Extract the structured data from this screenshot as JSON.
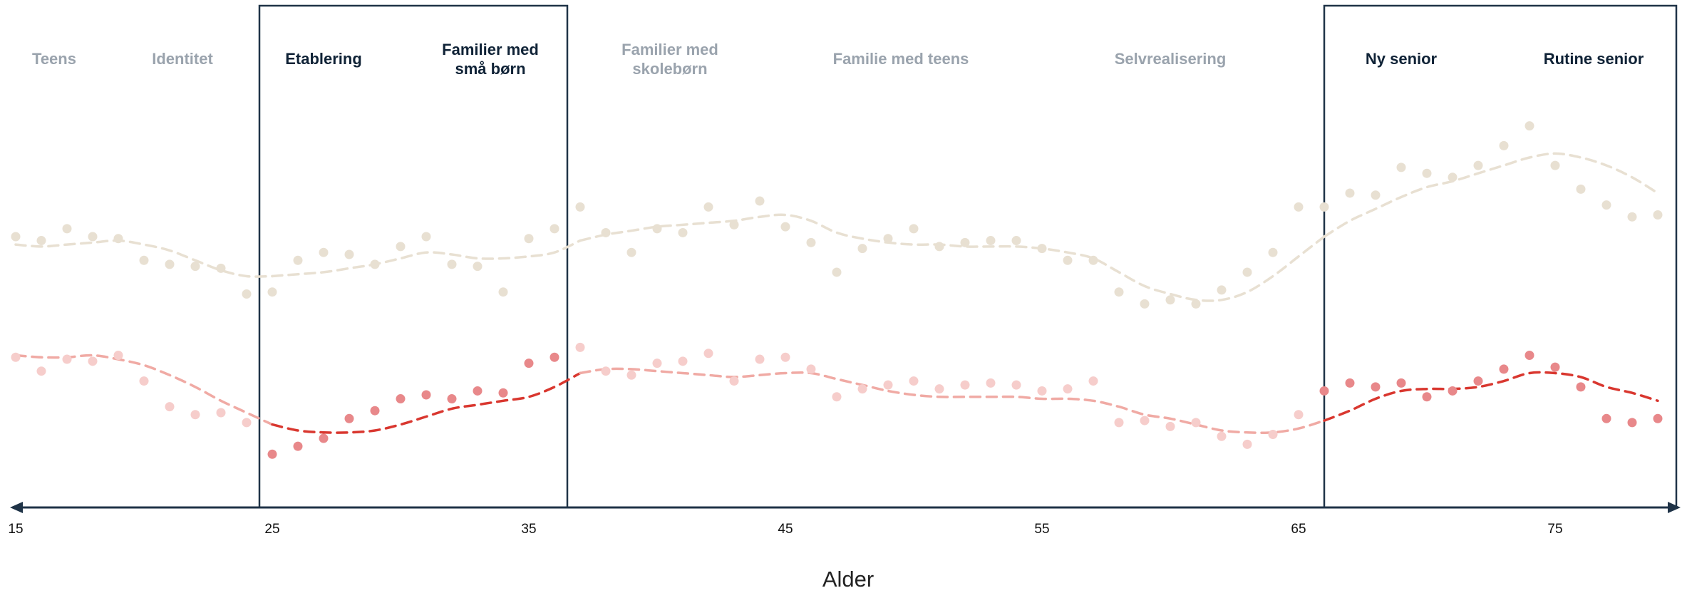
{
  "colors": {
    "axis": "#1f3347",
    "highlight_text": "#0f2236",
    "faded_text": "#9aa3ad",
    "beige": "#e8e0d2",
    "red_point": "#e8888a",
    "red_line": "#d9372f",
    "red_faded_point": "#f6cdcb",
    "red_faded_line": "#f0aaa4"
  },
  "chart_data": {
    "type": "scatter",
    "xlabel": "Alder",
    "ylabel": "",
    "xlim": [
      15,
      80
    ],
    "x_ticks": [
      15,
      25,
      35,
      45,
      55,
      65,
      75
    ],
    "ylim": [
      0,
      100
    ],
    "grid": false,
    "legend": "none",
    "highlight_ranges": [
      [
        24.5,
        36.5
      ],
      [
        66,
        80
      ]
    ],
    "phases": [
      {
        "key": "teens",
        "lines": [
          "Teens"
        ],
        "highlighted": false,
        "center": 16.5
      },
      {
        "key": "identitet",
        "lines": [
          "Identitet"
        ],
        "highlighted": false,
        "center": 21.5
      },
      {
        "key": "etablering",
        "lines": [
          "Etablering"
        ],
        "highlighted": true,
        "center": 27
      },
      {
        "key": "familier_smaa",
        "lines": [
          "Familier med",
          "små børn"
        ],
        "highlighted": true,
        "center": 33.5
      },
      {
        "key": "familier_skole",
        "lines": [
          "Familier med",
          "skolebørn"
        ],
        "highlighted": false,
        "center": 40.5
      },
      {
        "key": "familie_teens",
        "lines": [
          "Familie med teens"
        ],
        "highlighted": false,
        "center": 49.5
      },
      {
        "key": "selvrealisering",
        "lines": [
          "Selvrealisering"
        ],
        "highlighted": false,
        "center": 60
      },
      {
        "key": "ny_senior",
        "lines": [
          "Ny senior"
        ],
        "highlighted": true,
        "center": 69
      },
      {
        "key": "rutine_senior",
        "lines": [
          "Rutine senior"
        ],
        "highlighted": true,
        "center": 76.5
      }
    ],
    "series": [
      {
        "color_key": "beige",
        "x": [
          15,
          16,
          17,
          18,
          19,
          20,
          21,
          22,
          23,
          24,
          25,
          26,
          27,
          28,
          29,
          30,
          31,
          32,
          33,
          34,
          35,
          36,
          37,
          38,
          39,
          40,
          41,
          42,
          43,
          44,
          45,
          46,
          47,
          48,
          49,
          50,
          51,
          52,
          53,
          54,
          55,
          56,
          57,
          58,
          59,
          60,
          61,
          62,
          63,
          64,
          65,
          66,
          67,
          68,
          69,
          70,
          71,
          72,
          73,
          74,
          75,
          76,
          77,
          78,
          79
        ],
        "y": [
          60,
          59,
          62,
          60,
          59.5,
          54,
          53,
          52.5,
          52,
          45.5,
          46,
          54,
          56,
          55.5,
          53,
          57.5,
          60,
          53,
          52.5,
          46,
          59.5,
          62,
          67.5,
          61,
          56,
          62,
          61,
          67.5,
          63,
          69,
          62.5,
          58.5,
          51,
          57,
          59.5,
          62,
          57.5,
          58.5,
          59,
          59,
          57,
          54,
          54,
          46,
          43,
          44,
          43,
          46.5,
          51,
          56,
          67.5,
          67.5,
          71,
          70.5,
          77.5,
          76,
          75,
          78,
          83,
          88,
          78,
          72,
          68,
          65,
          65.5
        ],
        "trend": [
          58,
          57.5,
          58,
          58.5,
          59,
          58,
          56.5,
          54,
          51.5,
          50,
          50,
          50.5,
          51,
          52,
          53,
          54.5,
          56,
          55.5,
          54.5,
          54.5,
          55,
          56,
          59,
          60.5,
          61.5,
          62.5,
          63,
          63.5,
          64,
          65,
          65.5,
          64,
          61,
          59.5,
          58.5,
          58,
          58,
          57.5,
          57.5,
          57.5,
          57,
          56,
          54.5,
          51,
          47.5,
          45.5,
          44,
          44,
          46,
          50,
          55,
          60,
          64,
          67,
          70,
          72.5,
          74,
          76,
          78,
          80,
          81,
          80,
          78,
          75,
          71
        ]
      },
      {
        "color_key": "red",
        "x": [
          15,
          16,
          17,
          18,
          19,
          20,
          21,
          22,
          23,
          24,
          25,
          26,
          27,
          28,
          29,
          30,
          31,
          32,
          33,
          34,
          35,
          36,
          37,
          38,
          39,
          40,
          41,
          42,
          43,
          44,
          45,
          46,
          47,
          48,
          49,
          50,
          51,
          52,
          53,
          54,
          55,
          56,
          57,
          58,
          59,
          60,
          61,
          62,
          63,
          64,
          65,
          66,
          67,
          68,
          69,
          70,
          71,
          72,
          73,
          74,
          75,
          76,
          77,
          78,
          79
        ],
        "y": [
          29.5,
          26,
          29,
          28.5,
          30,
          23.5,
          17,
          15,
          15.5,
          13,
          5,
          7,
          9,
          14,
          16,
          19,
          20,
          19,
          21,
          20.5,
          28,
          29.5,
          32,
          26,
          25,
          28,
          28.5,
          30.5,
          23.5,
          29,
          29.5,
          26.5,
          19.5,
          21.5,
          22.5,
          23.5,
          21.5,
          22.5,
          23,
          22.5,
          21,
          21.5,
          23.5,
          13,
          13.5,
          12,
          13,
          9.5,
          7.5,
          10,
          15,
          21,
          23,
          22,
          23,
          19.5,
          21,
          23.5,
          26.5,
          30,
          27,
          22,
          14,
          13,
          14
        ],
        "trend": [
          30,
          29.5,
          29.5,
          30,
          29,
          27.5,
          25,
          22,
          18.5,
          15.5,
          12.5,
          11,
          10.5,
          10.5,
          11,
          12.5,
          14.5,
          16.5,
          17.5,
          18.5,
          19.5,
          22,
          25.5,
          26.5,
          26.5,
          26,
          25.5,
          25,
          24.5,
          25,
          25.5,
          25.5,
          24,
          22.5,
          21,
          20,
          19.5,
          19.5,
          19.5,
          19.5,
          19,
          19,
          18.5,
          17,
          15,
          14,
          12.5,
          11,
          10.5,
          10.5,
          11.5,
          13.5,
          16,
          19,
          21,
          21.5,
          21.5,
          22,
          23.5,
          25.5,
          25.5,
          24.5,
          22,
          20.5,
          18.5
        ]
      }
    ]
  }
}
